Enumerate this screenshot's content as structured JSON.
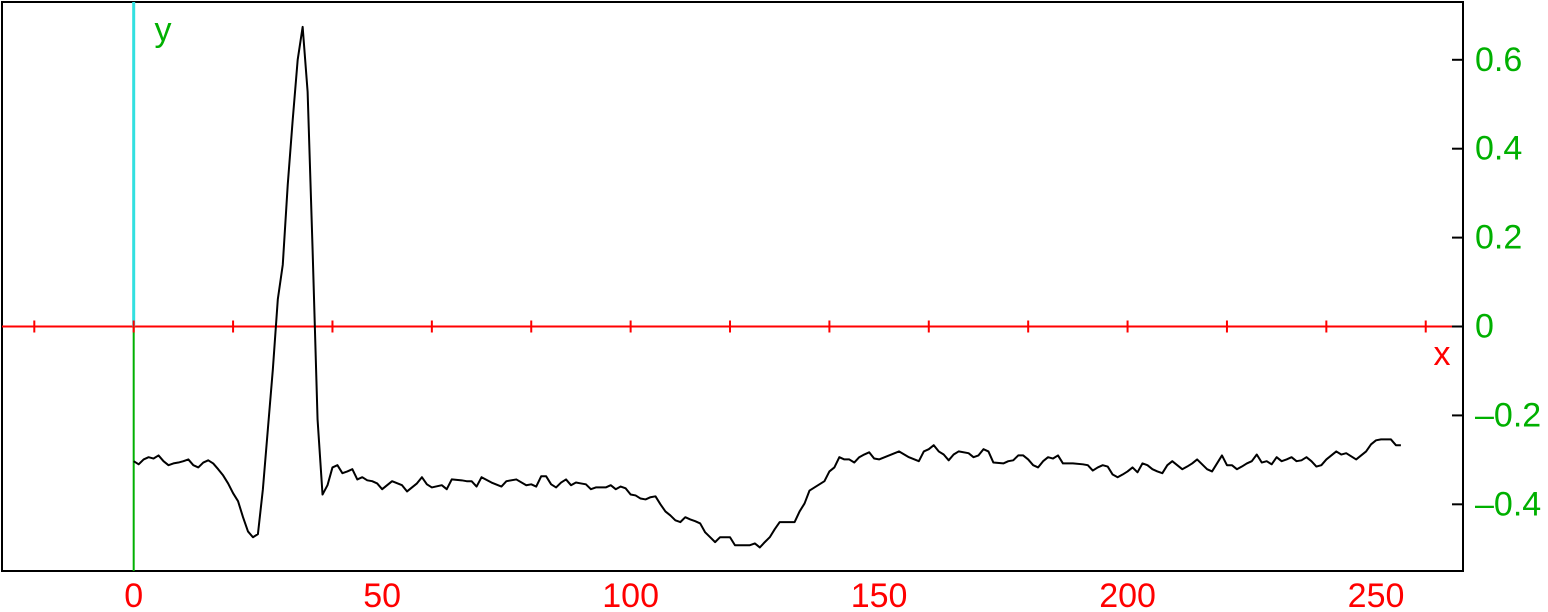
{
  "chart_data": {
    "type": "line",
    "x_label": "x",
    "y_label": "y",
    "x": [
      0,
      1,
      2,
      3,
      4,
      5,
      6,
      7,
      8,
      9,
      10,
      11,
      12,
      13,
      14,
      15,
      16,
      17,
      18,
      19,
      20,
      21,
      22,
      23,
      24,
      25,
      26,
      27,
      28,
      29,
      30,
      31,
      32,
      33,
      34,
      35,
      36,
      37,
      38,
      39,
      40,
      41,
      42,
      43,
      44,
      45,
      46,
      47,
      48,
      49,
      50,
      52,
      54,
      55,
      57,
      58,
      59,
      60,
      62,
      63,
      64,
      66,
      67,
      68,
      69,
      70,
      72,
      74,
      75,
      77,
      79,
      80,
      81,
      82,
      83,
      84,
      85,
      86,
      87,
      88,
      89,
      90,
      91,
      92,
      93,
      95,
      96,
      97,
      98,
      99,
      100,
      101,
      102,
      103,
      104,
      105,
      106,
      107,
      108,
      109,
      110,
      111,
      112,
      113,
      114,
      115,
      116,
      117,
      118,
      119,
      120,
      121,
      122,
      123,
      124,
      125,
      126,
      127,
      128,
      129,
      130,
      131,
      132,
      133,
      134,
      135,
      136,
      137,
      138,
      139,
      140,
      141,
      142,
      143,
      144,
      145,
      146,
      147,
      148,
      149,
      150,
      152,
      154,
      156,
      158,
      159,
      160,
      161,
      162,
      163,
      164,
      165,
      166,
      168,
      169,
      170,
      171,
      172,
      173,
      175,
      176,
      177,
      178,
      179,
      180,
      181,
      182,
      183,
      184,
      185,
      186,
      187,
      189,
      191,
      192,
      193,
      194,
      195,
      196,
      197,
      198,
      199,
      200,
      201,
      202,
      203,
      204,
      205,
      206,
      207,
      208,
      209,
      210,
      211,
      212,
      213,
      214,
      215,
      216,
      217,
      218,
      219,
      220,
      221,
      222,
      223,
      224,
      225,
      226,
      227,
      228,
      229,
      230,
      231,
      232,
      233,
      234,
      235,
      236,
      237,
      238,
      239,
      240,
      241,
      242,
      243,
      244,
      245,
      246,
      247,
      248,
      249,
      250,
      251,
      252,
      253,
      254,
      255
    ],
    "values": [
      -0.303,
      -0.31,
      -0.299,
      -0.294,
      -0.297,
      -0.29,
      -0.303,
      -0.312,
      -0.308,
      -0.306,
      -0.303,
      -0.299,
      -0.312,
      -0.317,
      -0.306,
      -0.301,
      -0.308,
      -0.321,
      -0.335,
      -0.353,
      -0.375,
      -0.393,
      -0.429,
      -0.461,
      -0.474,
      -0.467,
      -0.366,
      -0.231,
      -0.097,
      0.061,
      0.139,
      0.319,
      0.465,
      0.6,
      0.674,
      0.528,
      0.173,
      -0.209,
      -0.378,
      -0.357,
      -0.317,
      -0.312,
      -0.33,
      -0.326,
      -0.321,
      -0.344,
      -0.339,
      -0.346,
      -0.348,
      -0.353,
      -0.366,
      -0.348,
      -0.357,
      -0.371,
      -0.353,
      -0.339,
      -0.355,
      -0.362,
      -0.357,
      -0.366,
      -0.344,
      -0.346,
      -0.348,
      -0.348,
      -0.36,
      -0.339,
      -0.351,
      -0.36,
      -0.348,
      -0.344,
      -0.357,
      -0.355,
      -0.36,
      -0.337,
      -0.337,
      -0.355,
      -0.362,
      -0.351,
      -0.344,
      -0.357,
      -0.351,
      -0.353,
      -0.355,
      -0.366,
      -0.362,
      -0.362,
      -0.357,
      -0.366,
      -0.36,
      -0.364,
      -0.378,
      -0.38,
      -0.387,
      -0.389,
      -0.384,
      -0.382,
      -0.4,
      -0.416,
      -0.425,
      -0.436,
      -0.44,
      -0.429,
      -0.434,
      -0.438,
      -0.443,
      -0.463,
      -0.474,
      -0.485,
      -0.474,
      -0.474,
      -0.474,
      -0.492,
      -0.492,
      -0.492,
      -0.492,
      -0.488,
      -0.497,
      -0.485,
      -0.474,
      -0.456,
      -0.44,
      -0.44,
      -0.44,
      -0.44,
      -0.416,
      -0.398,
      -0.369,
      -0.362,
      -0.355,
      -0.348,
      -0.326,
      -0.317,
      -0.294,
      -0.299,
      -0.299,
      -0.306,
      -0.294,
      -0.288,
      -0.283,
      -0.297,
      -0.299,
      -0.29,
      -0.281,
      -0.294,
      -0.303,
      -0.281,
      -0.276,
      -0.267,
      -0.281,
      -0.288,
      -0.301,
      -0.288,
      -0.281,
      -0.285,
      -0.294,
      -0.29,
      -0.276,
      -0.281,
      -0.306,
      -0.308,
      -0.303,
      -0.301,
      -0.29,
      -0.29,
      -0.299,
      -0.312,
      -0.317,
      -0.303,
      -0.294,
      -0.297,
      -0.29,
      -0.308,
      -0.308,
      -0.31,
      -0.312,
      -0.324,
      -0.317,
      -0.312,
      -0.315,
      -0.333,
      -0.339,
      -0.333,
      -0.326,
      -0.317,
      -0.328,
      -0.308,
      -0.312,
      -0.321,
      -0.326,
      -0.33,
      -0.312,
      -0.303,
      -0.312,
      -0.321,
      -0.315,
      -0.308,
      -0.299,
      -0.31,
      -0.321,
      -0.326,
      -0.308,
      -0.29,
      -0.312,
      -0.312,
      -0.321,
      -0.315,
      -0.308,
      -0.303,
      -0.288,
      -0.306,
      -0.303,
      -0.31,
      -0.294,
      -0.303,
      -0.299,
      -0.294,
      -0.303,
      -0.301,
      -0.294,
      -0.303,
      -0.315,
      -0.312,
      -0.299,
      -0.29,
      -0.281,
      -0.288,
      -0.285,
      -0.292,
      -0.299,
      -0.29,
      -0.281,
      -0.265,
      -0.256,
      -0.254,
      -0.254,
      -0.254,
      -0.267,
      -0.267
    ],
    "color": "#000000",
    "xlim": [
      -26.5,
      267.5
    ],
    "ylim": [
      -0.55,
      0.73
    ],
    "xticks": [
      0,
      50,
      100,
      150,
      200,
      250
    ],
    "x_axis_ticks": [
      -20,
      0,
      20,
      40,
      60,
      80,
      100,
      120,
      140,
      160,
      180,
      200,
      220,
      240,
      260
    ],
    "yticks": [
      {
        "value": -0.4,
        "label": "–0.4"
      },
      {
        "value": -0.2,
        "label": "–0.2"
      },
      0,
      0.2,
      0.4,
      0.6
    ]
  }
}
